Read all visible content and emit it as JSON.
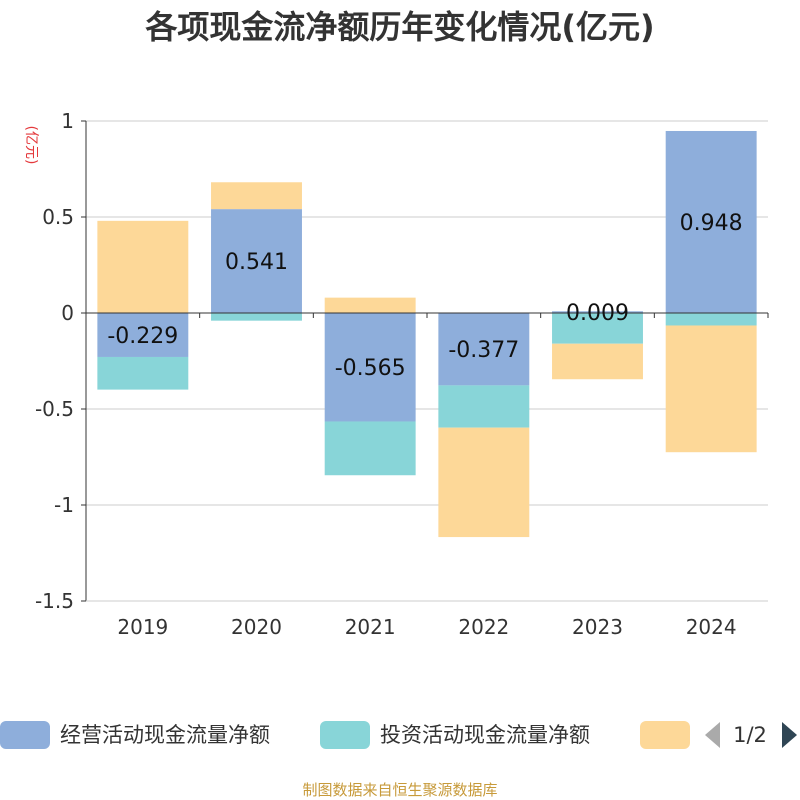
{
  "title": "各项现金流净额历年变化情况(亿元)",
  "unit_label": "(亿元)",
  "source": "制图数据来自恒生聚源数据库",
  "legend": {
    "page_indicator": "1/2",
    "prev_icon": "triangle-left-icon",
    "next_icon": "triangle-right-icon"
  },
  "colors": {
    "operating": "#8eaedb",
    "investing": "#88d5d8",
    "financing": "#fdd898",
    "axis": "#333333",
    "grid": "#cccccc",
    "unit": "#e4393c",
    "source": "#c79a3a"
  },
  "chart_data": {
    "type": "bar",
    "stacked": true,
    "categories": [
      "2019",
      "2020",
      "2021",
      "2022",
      "2023",
      "2024"
    ],
    "series": [
      {
        "name": "经营活动现金流量净额",
        "values": [
          -0.229,
          0.541,
          -0.565,
          -0.377,
          0.009,
          0.948
        ],
        "labels": [
          "-0.229",
          "0.541",
          "-0.565",
          "-0.377",
          "0.009",
          "0.948"
        ]
      },
      {
        "name": "投资活动现金流量净额",
        "values": [
          -0.17,
          -0.04,
          -0.28,
          -0.22,
          -0.16,
          -0.065
        ]
      },
      {
        "name": "",
        "values": [
          0.48,
          0.14,
          0.08,
          -0.57,
          -0.185,
          -0.66
        ]
      }
    ],
    "yticks": [
      "1",
      "0.5",
      "0",
      "-0.5",
      "-1",
      "-1.5"
    ],
    "ytick_values": [
      1,
      0.5,
      0,
      -0.5,
      -1,
      -1.5
    ],
    "ylim": [
      -1.5,
      1
    ],
    "grid": true,
    "legend_position": "bottom"
  }
}
